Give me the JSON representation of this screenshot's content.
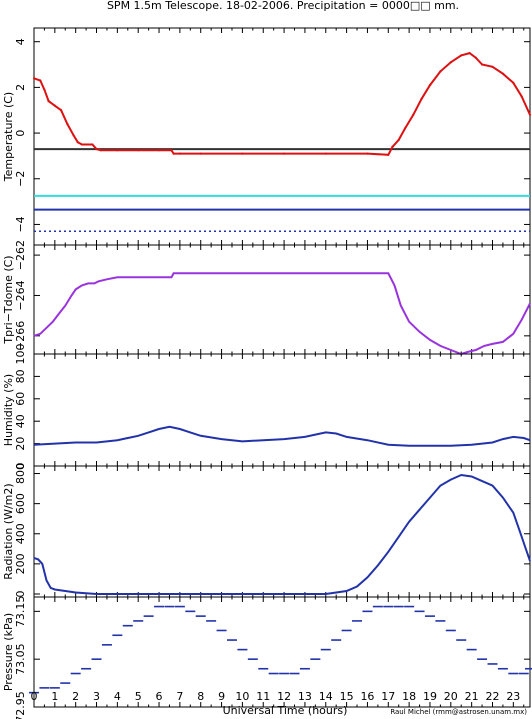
{
  "figure": {
    "title": "SPM 1.5m Telescope. 18-02-2006. Precipitation = 0000□□ mm.",
    "xlabel": "Universal Time (hours)",
    "credit": "Raul Michel (rmm@astrosen.unam.mx)",
    "x_range": [
      0,
      23.8
    ],
    "x_ticks": [
      "0",
      "1",
      "2",
      "3",
      "4",
      "5",
      "6",
      "7",
      "8",
      "9",
      "10",
      "11",
      "12",
      "13",
      "14",
      "15",
      "16",
      "17",
      "18",
      "19",
      "20",
      "21",
      "22",
      "23"
    ]
  },
  "chart_data": [
    {
      "type": "scatter",
      "ylabel": "Temperature (C)",
      "ylim": [
        -4.9,
        4.6
      ],
      "yticks": [
        -4,
        -2,
        0,
        2,
        4
      ],
      "ytick_labels": [
        "−4",
        "−2",
        "0",
        "2",
        "4"
      ],
      "hlines": [
        {
          "y": -0.7,
          "color": "#333333"
        },
        {
          "y": -2.75,
          "color": "#33dddd"
        },
        {
          "y": -3.35,
          "color": "#2233aa"
        }
      ],
      "series": [
        {
          "color": "#dd1111",
          "x": [
            0.0,
            0.3,
            0.5,
            0.7,
            1.0,
            1.3,
            1.6,
            1.9,
            2.1,
            2.3,
            2.5,
            2.8,
            3.0,
            3.2,
            4.0,
            5.0,
            6.0,
            6.6,
            6.7,
            7.0,
            8.0,
            10.0,
            12.0,
            14.0,
            16.0,
            17.0,
            17.2,
            17.5,
            17.8,
            18.2,
            18.6,
            19.0,
            19.5,
            20.0,
            20.5,
            20.9,
            21.2,
            21.5,
            22.0,
            22.5,
            23.0,
            23.4,
            23.8
          ],
          "y": [
            2.4,
            2.3,
            1.9,
            1.4,
            1.2,
            1.0,
            0.4,
            -0.1,
            -0.4,
            -0.5,
            -0.5,
            -0.5,
            -0.7,
            -0.75,
            -0.75,
            -0.75,
            -0.75,
            -0.75,
            -0.9,
            -0.9,
            -0.9,
            -0.9,
            -0.9,
            -0.9,
            -0.9,
            -0.95,
            -0.6,
            -0.3,
            0.2,
            0.8,
            1.5,
            2.1,
            2.7,
            3.1,
            3.4,
            3.5,
            3.3,
            3.0,
            2.9,
            2.6,
            2.2,
            1.6,
            0.8
          ]
        },
        {
          "color": "#2233aa",
          "x": [
            0,
            23.8
          ],
          "y": [
            -4.3,
            -4.3
          ]
        }
      ]
    },
    {
      "type": "line",
      "ylabel": "Tpri−Tdome (C)",
      "ylim": [
        -266.9,
        -261.5
      ],
      "yticks": [
        -266,
        -264,
        -262
      ],
      "ytick_labels": [
        "−266",
        "−264",
        "−262"
      ],
      "series": [
        {
          "color": "#9933dd",
          "x": [
            0.0,
            0.3,
            0.6,
            0.9,
            1.2,
            1.5,
            1.8,
            2.0,
            2.3,
            2.6,
            2.9,
            3.1,
            3.5,
            4.0,
            5.0,
            6.0,
            6.6,
            6.7,
            7.0,
            8.0,
            10.0,
            12.0,
            14.0,
            16.0,
            17.0,
            17.3,
            17.6,
            18.0,
            18.5,
            19.0,
            19.5,
            20.0,
            20.5,
            20.8,
            21.2,
            21.6,
            22.0,
            22.5,
            23.0,
            23.4,
            23.8
          ],
          "y": [
            -266.0,
            -265.9,
            -265.6,
            -265.3,
            -264.9,
            -264.5,
            -264.0,
            -263.7,
            -263.5,
            -263.4,
            -263.4,
            -263.3,
            -263.2,
            -263.1,
            -263.1,
            -263.1,
            -263.1,
            -262.9,
            -262.9,
            -262.9,
            -262.9,
            -262.9,
            -262.9,
            -262.9,
            -262.9,
            -263.5,
            -264.5,
            -265.3,
            -265.8,
            -266.2,
            -266.5,
            -266.7,
            -266.9,
            -266.8,
            -266.7,
            -266.5,
            -266.4,
            -266.3,
            -265.9,
            -265.2,
            -264.4
          ]
        }
      ]
    },
    {
      "type": "line",
      "ylabel": "Humidity (%)",
      "ylim": [
        0,
        100
      ],
      "yticks": [
        0,
        20,
        40,
        60,
        80,
        100
      ],
      "ytick_labels": [
        "0",
        "20",
        "40",
        "60",
        "80",
        "100"
      ],
      "series": [
        {
          "color": "#2233aa",
          "x": [
            0,
            1,
            2,
            3,
            4,
            5,
            5.5,
            6,
            6.5,
            7,
            7.5,
            8,
            9,
            10,
            11,
            12,
            13,
            13.5,
            14,
            14.5,
            15,
            16,
            17,
            18,
            19,
            20,
            21,
            22,
            22.5,
            23,
            23.5,
            23.8
          ],
          "y": [
            19,
            20,
            21,
            21,
            23,
            27,
            30,
            33,
            35,
            33,
            30,
            27,
            24,
            22,
            23,
            24,
            26,
            28,
            30,
            29,
            26,
            23,
            19,
            18,
            18,
            18,
            19,
            21,
            24,
            26,
            25,
            23
          ]
        }
      ]
    },
    {
      "type": "line",
      "ylabel": "Radiation (W/m2)",
      "ylim": [
        -20,
        850
      ],
      "yticks": [
        0,
        200,
        400,
        600,
        800
      ],
      "ytick_labels": [
        "0",
        "200",
        "400",
        "600",
        "800"
      ],
      "series": [
        {
          "color": "#2233aa",
          "x": [
            0,
            0.2,
            0.4,
            0.6,
            0.8,
            1.0,
            1.5,
            2.0,
            2.5,
            3.0,
            5.0,
            8.0,
            11.0,
            14.0,
            15.0,
            15.5,
            16.0,
            16.5,
            17.0,
            17.5,
            18.0,
            18.5,
            19.0,
            19.5,
            20.0,
            20.5,
            21.0,
            21.5,
            22.0,
            22.5,
            23.0,
            23.3,
            23.6,
            23.8
          ],
          "y": [
            240,
            230,
            200,
            90,
            40,
            30,
            20,
            10,
            5,
            0,
            0,
            0,
            0,
            0,
            20,
            50,
            110,
            190,
            280,
            380,
            480,
            560,
            640,
            720,
            760,
            790,
            780,
            750,
            720,
            640,
            540,
            420,
            300,
            220
          ]
        }
      ]
    },
    {
      "type": "scatter",
      "ylabel": "Pressure (kPa)",
      "ylim": [
        72.95,
        73.18
      ],
      "yticks": [
        72.95,
        73.05,
        73.15
      ],
      "ytick_labels": [
        "72.95",
        "73.05",
        "73.15"
      ],
      "series": [
        {
          "color": "#2233aa",
          "x": [
            0,
            0.5,
            1,
            1.5,
            2,
            2.5,
            3,
            3.5,
            4,
            4.5,
            5,
            5.5,
            6,
            6.5,
            7,
            7.5,
            8,
            8.5,
            9,
            9.5,
            10,
            10.5,
            11,
            11.5,
            12,
            12.5,
            13,
            13.5,
            14,
            14.5,
            15,
            15.5,
            16,
            16.5,
            17,
            17.5,
            18,
            18.5,
            19,
            19.5,
            20,
            20.5,
            21,
            21.5,
            22,
            22.5,
            23,
            23.5,
            23.8
          ],
          "y": [
            72.98,
            72.99,
            72.99,
            73.0,
            73.02,
            73.03,
            73.05,
            73.08,
            73.1,
            73.12,
            73.13,
            73.14,
            73.16,
            73.16,
            73.16,
            73.15,
            73.14,
            73.13,
            73.11,
            73.09,
            73.07,
            73.05,
            73.03,
            73.02,
            73.02,
            73.02,
            73.03,
            73.05,
            73.07,
            73.09,
            73.11,
            73.13,
            73.15,
            73.16,
            73.16,
            73.16,
            73.16,
            73.15,
            73.14,
            73.13,
            73.11,
            73.09,
            73.07,
            73.05,
            73.04,
            73.03,
            73.02,
            73.02,
            73.03
          ]
        }
      ]
    }
  ]
}
